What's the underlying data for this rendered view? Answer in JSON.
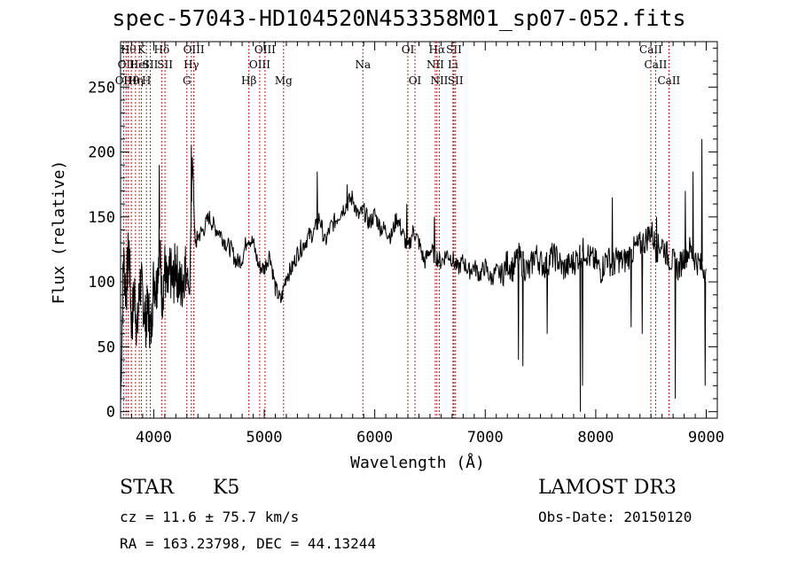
{
  "title": "spec-57043-HD104520N453358M01_sp07-052.fits",
  "info": {
    "object_class": "STAR",
    "subclass": "K5",
    "survey": "LAMOST DR3",
    "cz": "cz = 11.6 ± 75.7 km/s",
    "obs_date": "Obs-Date: 20150120",
    "radec": "RA = 163.23798, DEC =  44.13244"
  },
  "chart_data": {
    "type": "line",
    "xlabel": "Wavelength (Å)",
    "ylabel": "Flux (relative)",
    "xlim": [
      3700,
      9100
    ],
    "ylim": [
      -5,
      285
    ],
    "xticks": [
      4000,
      5000,
      6000,
      7000,
      8000,
      9000
    ],
    "yticks": [
      0,
      50,
      100,
      150,
      200,
      250
    ],
    "line_color": "#000000",
    "marker_color": "#b22222",
    "series": [
      {
        "x": [
          3700,
          3725,
          3750,
          3775,
          3800,
          3825,
          3850,
          3875,
          3900,
          3925,
          3950,
          3975,
          4000,
          4025,
          4050,
          4075,
          4100,
          4125,
          4150,
          4175,
          4200,
          4225,
          4250,
          4275,
          4300,
          4325,
          4350,
          4375,
          4400,
          4450,
          4500,
          4550,
          4600,
          4650,
          4700,
          4750,
          4800,
          4850,
          4900,
          4950,
          5000,
          5050,
          5100,
          5150,
          5200,
          5250,
          5300,
          5350,
          5400,
          5450,
          5500,
          5550,
          5600,
          5650,
          5700,
          5750,
          5800,
          5850,
          5900,
          5950,
          6000,
          6050,
          6100,
          6150,
          6200,
          6250,
          6300,
          6350,
          6400,
          6450,
          6500,
          6550,
          6600,
          6650,
          6700,
          6750,
          6800,
          6850,
          6900,
          6950,
          7000,
          7050,
          7100,
          7150,
          7200,
          7250,
          7300,
          7350,
          7400,
          7450,
          7500,
          7550,
          7600,
          7650,
          7700,
          7750,
          7800,
          7850,
          7900,
          7950,
          8000,
          8050,
          8100,
          8150,
          8200,
          8250,
          8300,
          8350,
          8400,
          8450,
          8500,
          8550,
          8600,
          8650,
          8700,
          8750,
          8800,
          8850,
          8900,
          8950,
          9000
        ],
        "y": [
          5,
          120,
          90,
          130,
          65,
          95,
          60,
          100,
          90,
          70,
          80,
          60,
          105,
          95,
          130,
          88,
          110,
          92,
          108,
          98,
          115,
          100,
          95,
          108,
          112,
          90,
          200,
          128,
          135,
          140,
          150,
          142,
          138,
          130,
          125,
          115,
          118,
          135,
          130,
          112,
          110,
          122,
          95,
          85,
          105,
          110,
          122,
          128,
          135,
          138,
          150,
          130,
          142,
          148,
          155,
          160,
          165,
          150,
          155,
          145,
          152,
          142,
          140,
          135,
          150,
          138,
          125,
          140,
          130,
          115,
          125,
          120,
          115,
          122,
          118,
          110,
          116,
          108,
          112,
          105,
          112,
          102,
          108,
          105,
          115,
          110,
          120,
          112,
          108,
          122,
          115,
          112,
          120,
          118,
          110,
          112,
          115,
          120,
          125,
          118,
          115,
          108,
          120,
          112,
          118,
          115,
          120,
          125,
          128,
          132,
          140,
          125,
          130,
          120,
          115,
          110,
          120,
          125,
          118,
          112,
          110
        ],
        "spikes": [
          {
            "x": 4050,
            "y": 190
          },
          {
            "x": 4340,
            "y": 205
          },
          {
            "x": 5480,
            "y": 185
          },
          {
            "x": 5750,
            "y": 175
          },
          {
            "x": 6290,
            "y": 160
          },
          {
            "x": 6540,
            "y": 150
          },
          {
            "x": 7300,
            "y": 40
          },
          {
            "x": 7340,
            "y": 35
          },
          {
            "x": 7560,
            "y": 60
          },
          {
            "x": 7860,
            "y": 0
          },
          {
            "x": 7880,
            "y": 20
          },
          {
            "x": 8150,
            "y": 165
          },
          {
            "x": 8320,
            "y": 65
          },
          {
            "x": 8420,
            "y": 60
          },
          {
            "x": 8550,
            "y": 150
          },
          {
            "x": 8720,
            "y": 10
          },
          {
            "x": 8810,
            "y": 170
          },
          {
            "x": 8880,
            "y": 185
          },
          {
            "x": 8960,
            "y": 210
          },
          {
            "x": 8990,
            "y": 20
          }
        ]
      }
    ],
    "lines": [
      {
        "x": 3727,
        "label": "OII",
        "row": 2
      },
      {
        "x": 3750,
        "label": "OII",
        "row": 1
      },
      {
        "x": 3770,
        "label": "Hθ",
        "row": 0
      },
      {
        "x": 3797,
        "label": "Hθ",
        "row": 2
      },
      {
        "x": 3835,
        "label": "Hη",
        "row": 2
      },
      {
        "x": 3869,
        "label": "HeI",
        "row": 1
      },
      {
        "x": 3889,
        "label": "K",
        "row": 0
      },
      {
        "x": 3934,
        "label": "H",
        "row": 2
      },
      {
        "x": 3969,
        "label": "SII",
        "row": 1
      },
      {
        "x": 4072,
        "label": "Hδ",
        "row": 0
      },
      {
        "x": 4102,
        "label": "SII",
        "row": 1
      },
      {
        "x": 4300,
        "label": "G",
        "row": 2
      },
      {
        "x": 4340,
        "label": "Hγ",
        "row": 1
      },
      {
        "x": 4363,
        "label": "OIII",
        "row": 0
      },
      {
        "x": 4861,
        "label": "Hβ",
        "row": 2
      },
      {
        "x": 4959,
        "label": "OIII",
        "row": 1
      },
      {
        "x": 5007,
        "label": "OIII",
        "row": 0
      },
      {
        "x": 5175,
        "label": "Mg",
        "row": 2
      },
      {
        "x": 5893,
        "label": "Na",
        "row": 1
      },
      {
        "x": 6300,
        "label": "OI",
        "row": 0
      },
      {
        "x": 6364,
        "label": "OI",
        "row": 2
      },
      {
        "x": 6548,
        "label": "NII",
        "row": 1
      },
      {
        "x": 6563,
        "label": "Hα",
        "row": 0
      },
      {
        "x": 6584,
        "label": "NII",
        "row": 2
      },
      {
        "x": 6708,
        "label": "Li",
        "row": 1
      },
      {
        "x": 6717,
        "label": "SII",
        "row": 0
      },
      {
        "x": 6731,
        "label": "SII",
        "row": 2
      },
      {
        "x": 8498,
        "label": "CaII",
        "row": 0
      },
      {
        "x": 8542,
        "label": "CaII",
        "row": 1
      },
      {
        "x": 8662,
        "label": "CaII",
        "row": 2
      }
    ]
  }
}
